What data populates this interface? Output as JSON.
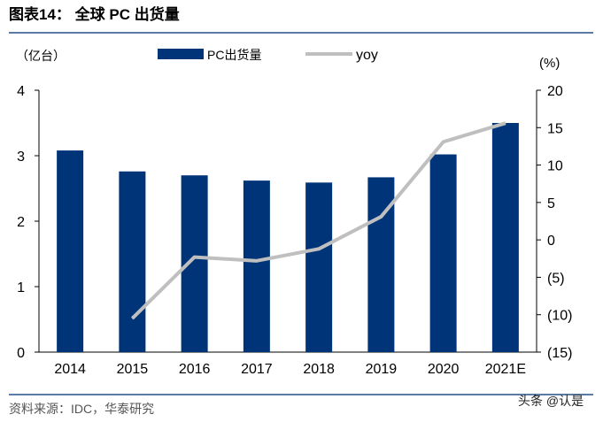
{
  "title": "图表14：  全球 PC 出货量",
  "source": "资料来源：IDC，华泰研究",
  "watermark": "头条 @认是",
  "colors": {
    "bar": "#003478",
    "line": "#bfbfbf",
    "rule": "#5b7aa6"
  },
  "chart_data": {
    "type": "bar+line",
    "categories": [
      "2014",
      "2015",
      "2016",
      "2017",
      "2018",
      "2019",
      "2020",
      "2021E"
    ],
    "left_unit": "（亿台）",
    "right_unit": "(%)",
    "left_ylim": [
      0,
      4
    ],
    "left_ticks": [
      "0",
      "1",
      "2",
      "3",
      "4"
    ],
    "right_ylim": [
      -15,
      20
    ],
    "right_ticks": [
      "(15)",
      "(10)",
      "(5)",
      "0",
      "5",
      "10",
      "15",
      "20"
    ],
    "series": [
      {
        "name": "PC出货量",
        "type": "bar",
        "axis": "left",
        "values": [
          3.08,
          2.76,
          2.7,
          2.62,
          2.59,
          2.67,
          3.02,
          3.5
        ]
      },
      {
        "name": "yoy",
        "type": "line",
        "axis": "right",
        "values": [
          null,
          -10.5,
          -2.3,
          -2.8,
          -1.2,
          3.1,
          13.1,
          15.6
        ]
      }
    ],
    "grid": false,
    "legend": "top"
  }
}
